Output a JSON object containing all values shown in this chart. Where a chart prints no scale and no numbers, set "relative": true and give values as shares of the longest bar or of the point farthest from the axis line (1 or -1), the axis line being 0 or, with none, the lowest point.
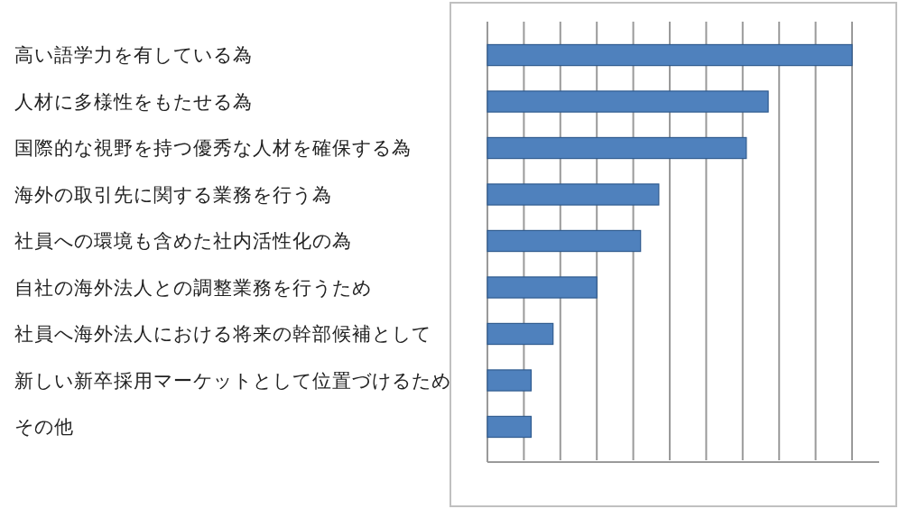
{
  "chart_data": {
    "type": "bar",
    "orientation": "horizontal",
    "relative": true,
    "grid": "x",
    "color": "#4f81bd",
    "categories": [
      "高い語学力を有している為",
      "人材に多様性をもたせる為",
      "国際的な視野を持つ優秀な人材を確保する為",
      "海外の取引先に関する業務を行う為",
      "社員への環境も含めた社内活性化の為",
      "自社の海外法人との調整業務を行うため",
      "社員へ海外法人における将来の幹部候補として",
      "新しい新卒採用マーケットとして位置づけるため",
      "その他"
    ],
    "values": [
      1,
      0.77,
      0.71,
      0.47,
      0.42,
      0.3,
      0.18,
      0.12,
      0.12
    ]
  }
}
